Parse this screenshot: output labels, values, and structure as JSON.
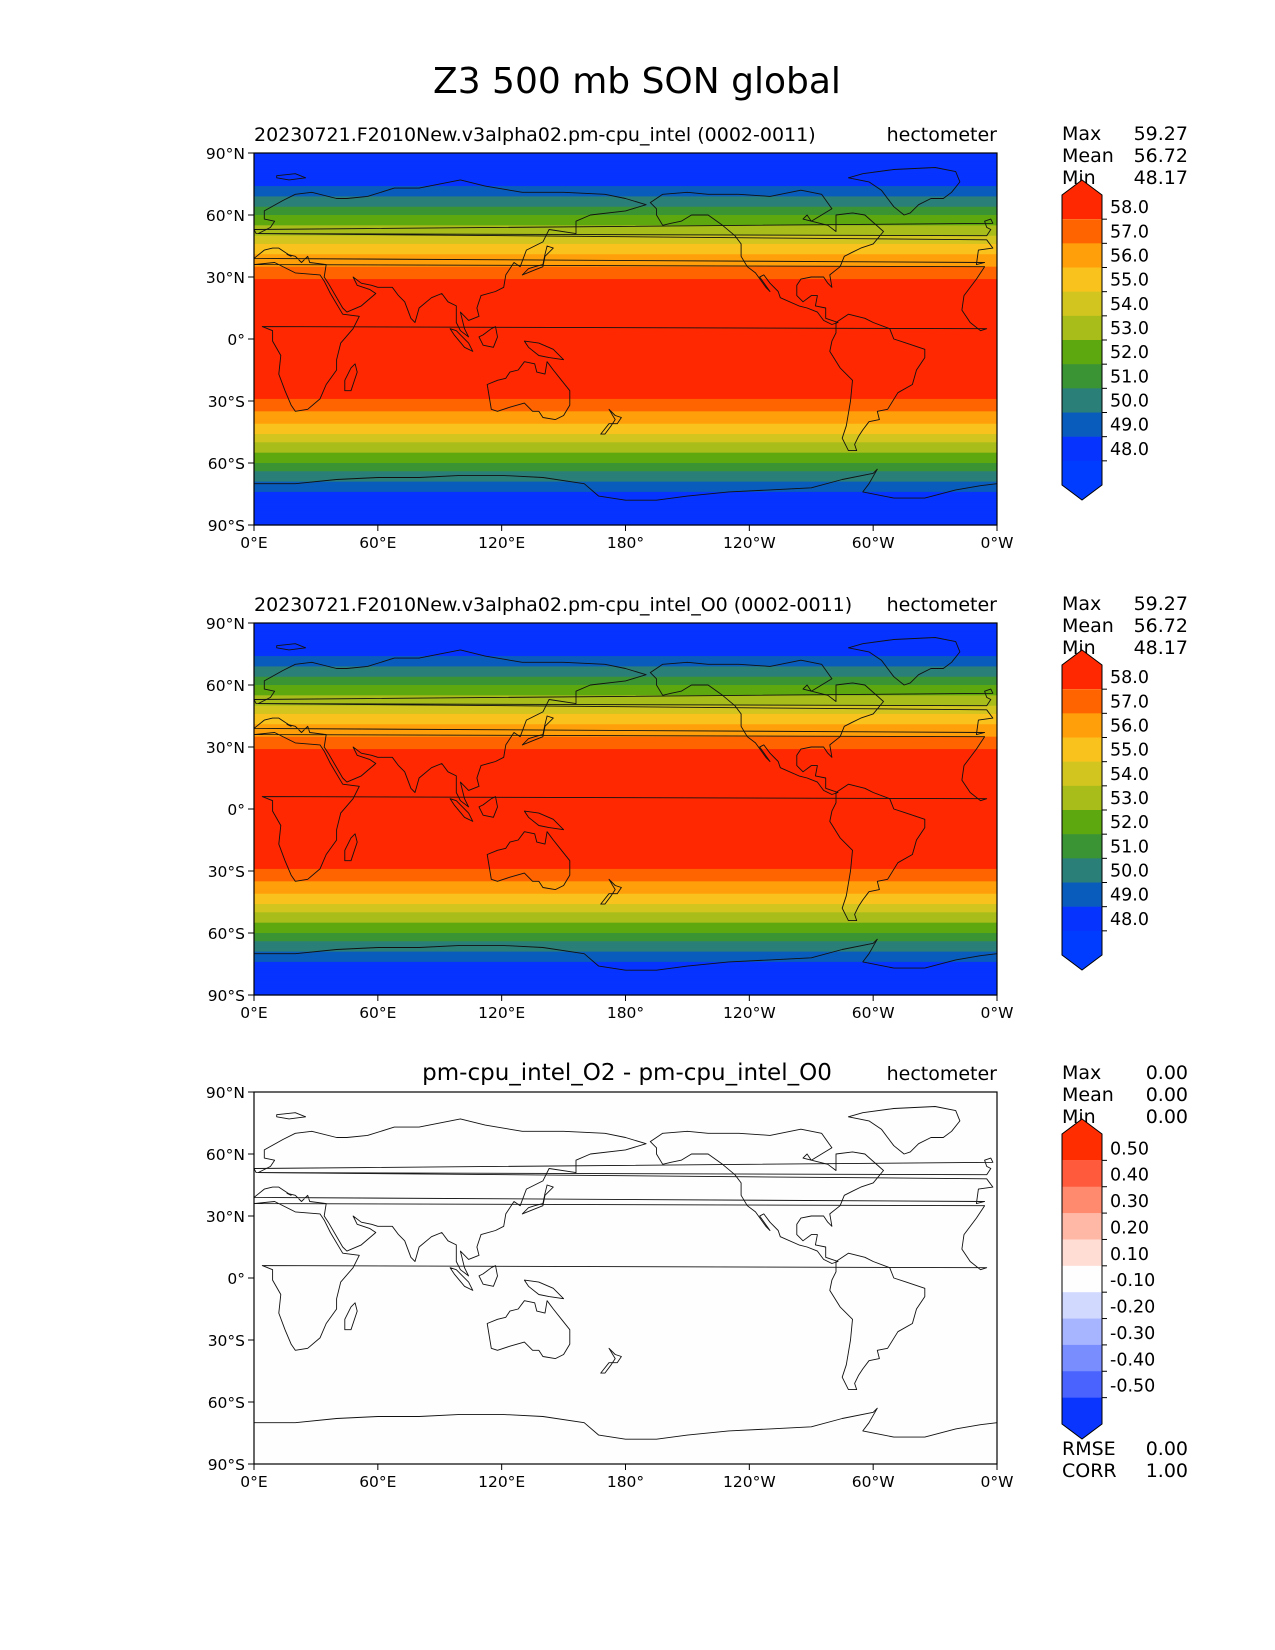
{
  "figure": {
    "suptitle": "Z3 500 mb SON global"
  },
  "chart_data": [
    {
      "type": "heatmap",
      "title": "20230721.F2010New.v3alpha02.pm-cpu_intel (0002-0011)",
      "units": "hectometer",
      "xticks": [
        "0°E",
        "60°E",
        "120°E",
        "180°",
        "120°W",
        "60°W",
        "0°W"
      ],
      "yticks": [
        "90°N",
        "60°N",
        "30°N",
        "0°",
        "30°S",
        "60°S",
        "90°S"
      ],
      "xlim": [
        0,
        360
      ],
      "ylim": [
        -90,
        90
      ],
      "stats": [
        {
          "label": "Max",
          "value": "59.27"
        },
        {
          "label": "Mean",
          "value": "56.72"
        },
        {
          "label": "Min",
          "value": "48.17"
        }
      ],
      "levels": [
        "58.0",
        "57.0",
        "56.0",
        "55.0",
        "54.0",
        "53.0",
        "52.0",
        "51.0",
        "50.0",
        "49.0",
        "48.0"
      ],
      "colors": [
        "#ff2800",
        "#ff6400",
        "#ff9f0a",
        "#f9c21c",
        "#d2c51f",
        "#a8bd1a",
        "#5ea80f",
        "#3a9433",
        "#2a7f78",
        "#0a5cbc",
        "#0733ff",
        "#003cff"
      ],
      "field": "z500",
      "extra_stats": []
    },
    {
      "type": "heatmap",
      "title": "20230721.F2010New.v3alpha02.pm-cpu_intel_O0 (0002-0011)",
      "units": "hectometer",
      "xticks": [
        "0°E",
        "60°E",
        "120°E",
        "180°",
        "120°W",
        "60°W",
        "0°W"
      ],
      "yticks": [
        "90°N",
        "60°N",
        "30°N",
        "0°",
        "30°S",
        "60°S",
        "90°S"
      ],
      "xlim": [
        0,
        360
      ],
      "ylim": [
        -90,
        90
      ],
      "stats": [
        {
          "label": "Max",
          "value": "59.27"
        },
        {
          "label": "Mean",
          "value": "56.72"
        },
        {
          "label": "Min",
          "value": "48.17"
        }
      ],
      "levels": [
        "58.0",
        "57.0",
        "56.0",
        "55.0",
        "54.0",
        "53.0",
        "52.0",
        "51.0",
        "50.0",
        "49.0",
        "48.0"
      ],
      "colors": [
        "#ff2800",
        "#ff6400",
        "#ff9f0a",
        "#f9c21c",
        "#d2c51f",
        "#a8bd1a",
        "#5ea80f",
        "#3a9433",
        "#2a7f78",
        "#0a5cbc",
        "#0733ff",
        "#003cff"
      ],
      "field": "z500",
      "extra_stats": []
    },
    {
      "type": "heatmap",
      "title": "pm-cpu_intel_O2 - pm-cpu_intel_O0",
      "units": "hectometer",
      "xticks": [
        "0°E",
        "60°E",
        "120°E",
        "180°",
        "120°W",
        "60°W",
        "0°W"
      ],
      "yticks": [
        "90°N",
        "60°N",
        "30°N",
        "0°",
        "30°S",
        "60°S",
        "90°S"
      ],
      "xlim": [
        0,
        360
      ],
      "ylim": [
        -90,
        90
      ],
      "stats": [
        {
          "label": "Max",
          "value": "0.00"
        },
        {
          "label": "Mean",
          "value": "0.00"
        },
        {
          "label": "Min",
          "value": "0.00"
        }
      ],
      "levels": [
        "0.50",
        "0.40",
        "0.30",
        "0.20",
        "0.10",
        "-0.10",
        "-0.20",
        "-0.30",
        "-0.40",
        "-0.50"
      ],
      "colors": [
        "#ff2d00",
        "#ff5a3c",
        "#ff8a6e",
        "#ffb7a6",
        "#ffdcd4",
        "#fefefe",
        "#d2d9ff",
        "#a7b4ff",
        "#7a8dff",
        "#4a63ff",
        "#0a35ff"
      ],
      "field": "zero",
      "extra_stats": [
        {
          "label": "RMSE",
          "value": "0.00"
        },
        {
          "label": "CORR",
          "value": "1.00"
        }
      ]
    }
  ]
}
